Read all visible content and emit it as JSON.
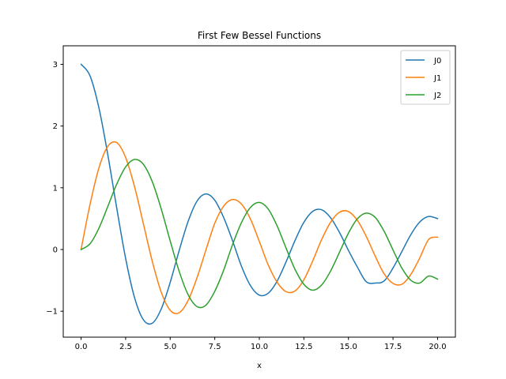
{
  "chart_data": {
    "type": "line",
    "title": "First Few Bessel Functions",
    "xlabel": "x",
    "ylabel": "",
    "xlim": [
      -1,
      21
    ],
    "ylim": [
      -1.42,
      3.3
    ],
    "grid": false,
    "legend_placement": "top-right",
    "xticks": [
      0,
      2.5,
      5,
      7.5,
      10,
      12.5,
      15,
      17.5,
      20
    ],
    "xtick_labels": [
      "0.0",
      "2.5",
      "5.0",
      "7.5",
      "10.0",
      "12.5",
      "15.0",
      "17.5",
      "20.0"
    ],
    "yticks": [
      -1,
      0,
      1,
      2,
      3
    ],
    "ytick_labels": [
      "−1",
      "0",
      "1",
      "2",
      "3"
    ],
    "series": [
      {
        "name": "J0",
        "color": "#1f77b4",
        "x": [
          0,
          0.5,
          1,
          1.5,
          2,
          2.5,
          3,
          3.5,
          4,
          4.5,
          5,
          5.5,
          6,
          6.5,
          7,
          7.5,
          8,
          8.5,
          9,
          9.5,
          10,
          10.5,
          11,
          11.5,
          12,
          12.5,
          13,
          13.5,
          14,
          14.5,
          15,
          15.5,
          16,
          16.5,
          17,
          17.5,
          18,
          18.5,
          19,
          19.5,
          20
        ],
        "y": [
          3.0,
          2.815,
          2.296,
          1.535,
          0.671,
          -0.145,
          -0.78,
          -1.14,
          -1.193,
          -0.961,
          -0.533,
          -0.02,
          0.451,
          0.782,
          0.9,
          0.799,
          0.517,
          0.14,
          -0.272,
          -0.584,
          -0.739,
          -0.708,
          -0.512,
          -0.201,
          0.144,
          0.441,
          0.619,
          0.643,
          0.514,
          0.275,
          -0.015,
          -0.284,
          -0.523,
          -0.543,
          -0.51,
          -0.3,
          -0.032,
          0.241,
          0.446,
          0.535,
          0.5
        ]
      },
      {
        "name": "J1",
        "color": "#ff7f0e",
        "x": [
          0,
          0.5,
          1,
          1.5,
          2,
          2.5,
          3,
          3.5,
          4,
          4.5,
          5,
          5.5,
          6,
          6.5,
          7,
          7.5,
          8,
          8.5,
          9,
          9.5,
          10,
          10.5,
          11,
          11.5,
          12,
          12.5,
          13,
          13.5,
          14,
          14.5,
          15,
          15.5,
          16,
          16.5,
          17,
          17.5,
          18,
          18.5,
          19,
          19.5,
          20
        ],
        "y": [
          0.0,
          0.727,
          1.32,
          1.672,
          1.731,
          1.491,
          1.017,
          0.412,
          -0.198,
          -0.694,
          -0.985,
          -1.025,
          -0.829,
          -0.461,
          -0.012,
          0.425,
          0.703,
          0.81,
          0.735,
          0.495,
          0.131,
          -0.25,
          -0.53,
          -0.683,
          -0.671,
          -0.491,
          -0.181,
          0.163,
          0.442,
          0.604,
          0.615,
          0.472,
          0.212,
          -0.106,
          -0.393,
          -0.549,
          -0.563,
          -0.404,
          -0.137,
          0.162,
          0.2
        ]
      },
      {
        "name": "J2",
        "color": "#2ca02c",
        "x": [
          0,
          0.5,
          1,
          1.5,
          2,
          2.5,
          3,
          3.5,
          4,
          4.5,
          5,
          5.5,
          6,
          6.5,
          7,
          7.5,
          8,
          8.5,
          9,
          9.5,
          10,
          10.5,
          11,
          11.5,
          12,
          12.5,
          13,
          13.5,
          14,
          14.5,
          15,
          15.5,
          16,
          16.5,
          17,
          17.5,
          18,
          18.5,
          19,
          19.5,
          20
        ],
        "y": [
          0.0,
          0.092,
          0.345,
          0.697,
          1.059,
          1.338,
          1.458,
          1.378,
          1.094,
          0.654,
          0.139,
          -0.351,
          -0.729,
          -0.924,
          -0.903,
          -0.677,
          -0.335,
          0.081,
          0.437,
          0.681,
          0.762,
          0.654,
          0.381,
          0.023,
          -0.32,
          -0.564,
          -0.659,
          -0.574,
          -0.348,
          -0.043,
          0.265,
          0.497,
          0.59,
          0.52,
          0.295,
          -0.007,
          -0.303,
          -0.498,
          -0.543,
          -0.43,
          -0.48
        ]
      }
    ]
  }
}
